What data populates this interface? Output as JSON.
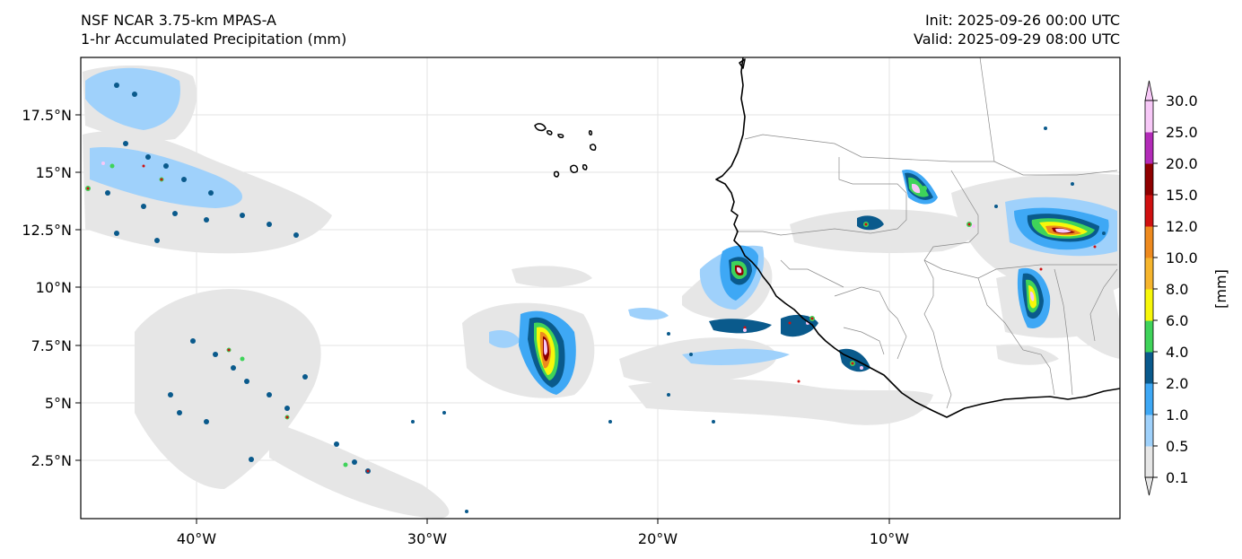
{
  "header": {
    "model": "NSF NCAR 3.75-km MPAS-A",
    "field": "1-hr Accumulated Precipitation (mm)",
    "init": "Init: 2025-09-26 00:00 UTC",
    "valid": "Valid: 2025-09-29 08:00 UTC"
  },
  "axes": {
    "lon_ticks": [
      "40°W",
      "30°W",
      "20°W",
      "10°W"
    ],
    "lat_ticks": [
      "17.5°N",
      "15°N",
      "12.5°N",
      "10°N",
      "7.5°N",
      "5°N",
      "2.5°N"
    ]
  },
  "colorbar": {
    "unit_label": "[mm]",
    "levels": [
      "0.1",
      "0.5",
      "1.0",
      "2.0",
      "4.0",
      "6.0",
      "8.0",
      "10.0",
      "12.0",
      "15.0",
      "20.0",
      "25.0",
      "30.0"
    ],
    "colors": [
      "#e6e6e6",
      "#9fd1fb",
      "#3ea8f5",
      "#0a5a8c",
      "#3fd35a",
      "#f7f70a",
      "#f6b52d",
      "#ee8a1e",
      "#cf1010",
      "#8f0000",
      "#b32bb8",
      "#f7c8f7"
    ],
    "extend": "both"
  },
  "colors": {
    "coast": "#000000",
    "border": "#808080",
    "grid": "#d9d9d9"
  }
}
